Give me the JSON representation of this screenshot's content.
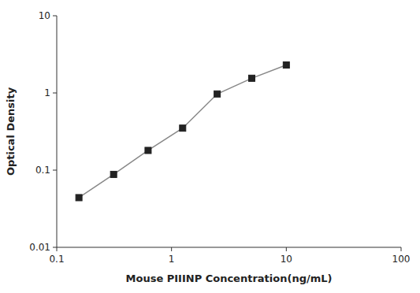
{
  "chart_data": {
    "type": "line",
    "x": [
      0.156,
      0.313,
      0.625,
      1.25,
      2.5,
      5.0,
      10.0
    ],
    "series": [
      {
        "values": [
          0.044,
          0.088,
          0.18,
          0.35,
          0.97,
          1.55,
          2.3
        ],
        "color": "#888888",
        "marker": "square"
      }
    ],
    "xlim": [
      0.1,
      100
    ],
    "ylim": [
      0.01,
      10
    ],
    "xticks": [
      0.1,
      1,
      10,
      100
    ],
    "yticks": [
      0.01,
      0.1,
      1,
      10
    ],
    "xlabel": "Mouse PIIINP Concentration(ng/mL)",
    "ylabel": "Optical Density",
    "log": true,
    "grid": false
  }
}
